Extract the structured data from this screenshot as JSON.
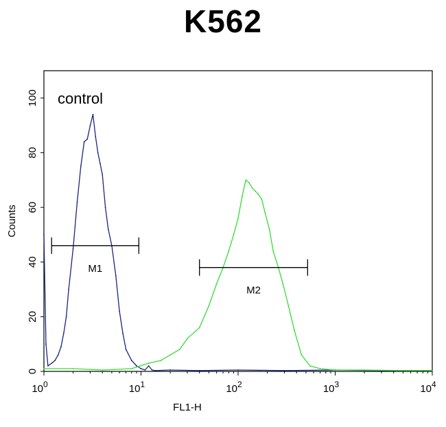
{
  "chart_data": {
    "type": "line",
    "title": "K562",
    "xlabel": "FL1-H",
    "ylabel": "Counts",
    "xscale": "log",
    "xlim": [
      1,
      10000
    ],
    "ylim": [
      0,
      110
    ],
    "grid": false,
    "y_ticks": [
      0,
      20,
      40,
      60,
      80,
      100
    ],
    "y_tick_labels": [
      "0",
      "20",
      "40",
      "60",
      "80",
      "100"
    ],
    "x_ticks": [
      1,
      10,
      100,
      1000,
      10000
    ],
    "x_tick_labels": [
      {
        "base": "10",
        "exp": "0"
      },
      {
        "base": "10",
        "exp": "1"
      },
      {
        "base": "10",
        "exp": "2"
      },
      {
        "base": "10",
        "exp": "3"
      },
      {
        "base": "10",
        "exp": "4"
      }
    ],
    "series": [
      {
        "name": "control",
        "color": "#1a237e",
        "x": [
          1.0,
          1.05,
          1.1,
          1.2,
          1.3,
          1.4,
          1.5,
          1.6,
          1.7,
          1.8,
          2.0,
          2.2,
          2.4,
          2.6,
          2.8,
          3.0,
          3.2,
          3.4,
          3.6,
          3.8,
          4.0,
          4.3,
          4.6,
          5.0,
          5.5,
          6.0,
          6.5,
          7.0,
          8.0,
          9.0,
          10.0,
          11.0,
          12.0,
          13.0,
          14.0,
          20.0,
          40.0,
          100.0,
          300.0,
          1000.0,
          3000.0,
          10000.0
        ],
        "y": [
          50,
          10,
          2,
          3,
          4,
          6,
          9,
          14,
          20,
          30,
          45,
          62,
          75,
          84,
          85,
          90,
          94,
          86,
          80,
          76,
          72,
          60,
          52,
          46,
          35,
          22,
          14,
          8,
          4,
          2,
          1,
          0.5,
          2,
          0.5,
          0.3,
          0.5,
          0.3,
          0.5,
          0.3,
          0.5,
          0.3,
          0.3
        ]
      },
      {
        "name": "",
        "color": "#33dd33",
        "x": [
          1.0,
          2.0,
          4.0,
          8.0,
          12.0,
          16.0,
          20.0,
          25.0,
          30.0,
          40.0,
          50.0,
          60.0,
          70.0,
          80.0,
          90.0,
          100.0,
          110.0,
          120.0,
          130.0,
          140.0,
          150.0,
          160.0,
          175.0,
          190.0,
          210.0,
          230.0,
          260.0,
          290.0,
          330.0,
          380.0,
          450.0,
          550.0,
          700.0,
          1000.0,
          2000.0,
          5000.0,
          10000.0
        ],
        "y": [
          1,
          1,
          0.5,
          1,
          3,
          4,
          6,
          8,
          12,
          16,
          24,
          32,
          38,
          44,
          50,
          56,
          64,
          70,
          69,
          67,
          66,
          65,
          63,
          58,
          52,
          44,
          38,
          32,
          24,
          15,
          6,
          2,
          1,
          0.5,
          0.5,
          0.3,
          0.3
        ]
      }
    ],
    "markers": [
      {
        "label": "M1",
        "x_range": [
          1.2,
          9.5
        ],
        "y": 46
      },
      {
        "label": "M2",
        "x_range": [
          40,
          520
        ],
        "y": 38
      }
    ],
    "annotations": [
      "control"
    ]
  }
}
